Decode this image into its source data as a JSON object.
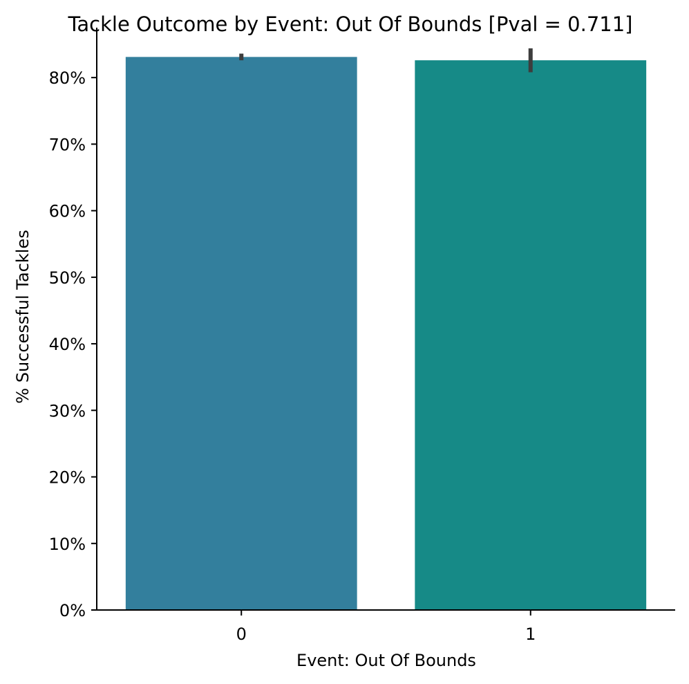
{
  "chart_data": {
    "type": "bar",
    "title": "Tackle Outcome by Event: Out Of Bounds [Pval = 0.711]",
    "xlabel": "Event: Out Of Bounds",
    "ylabel": "% Successful Tackles",
    "categories": [
      "0",
      "1"
    ],
    "values": [
      83.1,
      82.6
    ],
    "error_bars": [
      [
        82.6,
        83.6
      ],
      [
        80.8,
        84.4
      ]
    ],
    "colors": [
      "#337f9d",
      "#168a87"
    ],
    "ylim": [
      0,
      87.5
    ],
    "yticks": [
      0,
      10,
      20,
      30,
      40,
      50,
      60,
      70,
      80
    ],
    "ytick_labels": [
      "0%",
      "10%",
      "20%",
      "30%",
      "40%",
      "50%",
      "60%",
      "70%",
      "80%"
    ],
    "grid": false,
    "legend": "none"
  }
}
